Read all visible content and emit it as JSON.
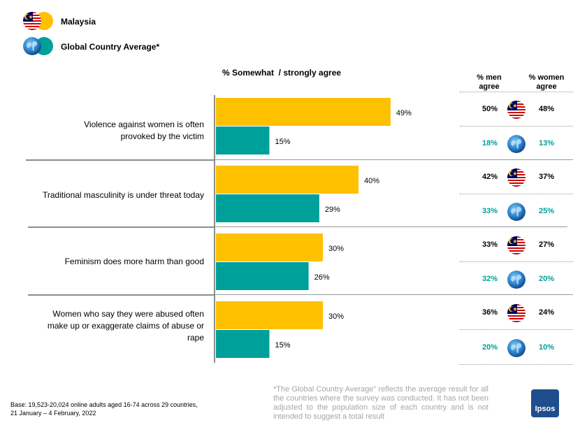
{
  "legend": {
    "malaysia_label": "Malaysia",
    "global_label": "Global Country Average*"
  },
  "colors": {
    "malaysia": "#FFC000",
    "global": "#00A09A",
    "ipsos": "#1f4e8c"
  },
  "chart_data": {
    "type": "bar",
    "orientation": "horizontal",
    "title": "% Somewhat  / strongly agree",
    "categories": [
      "Violence against women is often provoked by the victim",
      "Traditional masculinity is under threat today",
      "Feminism does more harm than good",
      "Women who say they were abused often make up or exaggerate claims of abuse or rape"
    ],
    "series": [
      {
        "name": "Malaysia",
        "values": [
          49,
          40,
          30,
          30
        ],
        "labels": [
          "49%",
          "40%",
          "30%",
          "30%"
        ]
      },
      {
        "name": "Global Country Average*",
        "values": [
          15,
          29,
          26,
          15
        ],
        "labels": [
          "15%",
          "29%",
          "26%",
          "15%"
        ]
      }
    ],
    "xlim": [
      0,
      100
    ],
    "columns": {
      "men": "% men agree",
      "women": "% women agree"
    },
    "gender_table": [
      {
        "malaysia_men": "50%",
        "malaysia_women": "48%",
        "global_men": "18%",
        "global_women": "13%"
      },
      {
        "malaysia_men": "42%",
        "malaysia_women": "37%",
        "global_men": "33%",
        "global_women": "25%"
      },
      {
        "malaysia_men": "33%",
        "malaysia_women": "27%",
        "global_men": "32%",
        "global_women": "20%"
      },
      {
        "malaysia_men": "36%",
        "malaysia_women": "24%",
        "global_men": "20%",
        "global_women": "10%"
      }
    ]
  },
  "header": {
    "men_line1": "% men",
    "men_line2": "agree",
    "women_line1": "% women",
    "women_line2": "agree"
  },
  "statements": {
    "s1_line1": "Violence against women is often",
    "s1_line2": "provoked by the victim",
    "s2_line1": "Traditional masculinity is under threat today",
    "s3_line1": "Feminism does more harm than good",
    "s4_line1": "Women who say they were abused often",
    "s4_line2": "make up or exaggerate claims of abuse or",
    "s4_line3": "rape"
  },
  "footer": {
    "base": "Base: 19,523-20,024 online adults aged 16-74 across 29 countries, 21 January – 4 February, 2022",
    "note": "*The Global Country Average” reflects the average result for all the countries where the survey was conducted. It has not been adjusted to the population size of each country and is not intended to suggest a total result",
    "logo": "Ipsos"
  }
}
